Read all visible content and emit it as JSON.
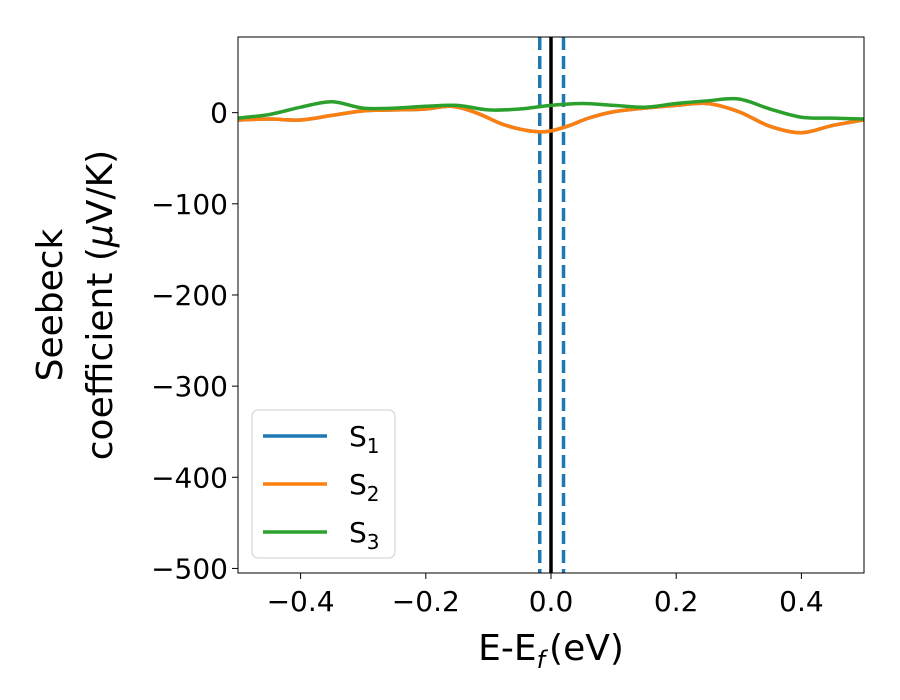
{
  "chart_data": {
    "type": "line",
    "xlabel": "E-E",
    "xlabel_subscript": "f",
    "xlabel_unit": "(eV)",
    "ylabel_line1": "Seebeck",
    "ylabel_line2": "coefficient  (",
    "ylabel_mu": "μ",
    "ylabel_unit_rest": "V/K)",
    "xlim": [
      -0.5,
      0.5
    ],
    "ylim": [
      -505,
      83
    ],
    "x_ticks": [
      -0.4,
      -0.2,
      0.0,
      0.2,
      0.4
    ],
    "x_tick_labels": [
      "−0.4",
      "−0.2",
      "0.0",
      "0.2",
      "0.4"
    ],
    "y_ticks": [
      0,
      -100,
      -200,
      -300,
      -400,
      -500
    ],
    "y_tick_labels": [
      "0",
      "−100",
      "−200",
      "−300",
      "−400",
      "−500"
    ],
    "grid": false,
    "legend_position": "lower-left",
    "vertical_lines": [
      {
        "x": 0.0,
        "style": "solid",
        "color": "#000000"
      },
      {
        "x": -0.018,
        "style": "dashed",
        "color": "#1f77b4"
      },
      {
        "x": 0.02,
        "style": "dashed",
        "color": "#1f77b4"
      }
    ],
    "series": [
      {
        "name": "S",
        "subscript": "1",
        "color": "#1f77b4",
        "x": [
          -0.5,
          -0.45,
          -0.4,
          -0.35,
          -0.3,
          -0.25,
          -0.2,
          -0.16,
          -0.12,
          -0.08,
          -0.05,
          -0.02,
          0.0,
          0.03,
          0.06,
          0.1,
          0.15,
          0.2,
          0.25,
          0.3,
          0.35,
          0.4,
          0.45,
          0.5
        ],
        "y": [
          -8,
          -7,
          -8,
          -3,
          2,
          3,
          4,
          7,
          0,
          -12,
          -18,
          -21,
          -20,
          -14,
          -6,
          1,
          5,
          8,
          10,
          1,
          -15,
          -22,
          -14,
          -8
        ]
      },
      {
        "name": "S",
        "subscript": "2",
        "color": "#ff7f0e",
        "x": [
          -0.5,
          -0.45,
          -0.4,
          -0.35,
          -0.3,
          -0.25,
          -0.2,
          -0.16,
          -0.12,
          -0.08,
          -0.05,
          -0.02,
          0.0,
          0.03,
          0.06,
          0.1,
          0.15,
          0.2,
          0.25,
          0.3,
          0.35,
          0.4,
          0.45,
          0.5
        ],
        "y": [
          -8,
          -7,
          -8,
          -3,
          2,
          3,
          4,
          7,
          0,
          -12,
          -18,
          -21,
          -20,
          -14,
          -6,
          1,
          5,
          8,
          10,
          1,
          -15,
          -22,
          -14,
          -8
        ]
      },
      {
        "name": "S",
        "subscript": "3",
        "color": "#2ca02c",
        "x": [
          -0.5,
          -0.45,
          -0.4,
          -0.35,
          -0.3,
          -0.25,
          -0.2,
          -0.15,
          -0.1,
          -0.05,
          0.0,
          0.05,
          0.1,
          0.15,
          0.2,
          0.25,
          0.3,
          0.35,
          0.4,
          0.45,
          0.5
        ],
        "y": [
          -6,
          -2,
          6,
          12,
          5,
          5,
          7,
          8,
          3,
          4,
          8,
          10,
          8,
          6,
          10,
          13,
          15,
          4,
          -5,
          -6,
          -7
        ]
      }
    ]
  }
}
